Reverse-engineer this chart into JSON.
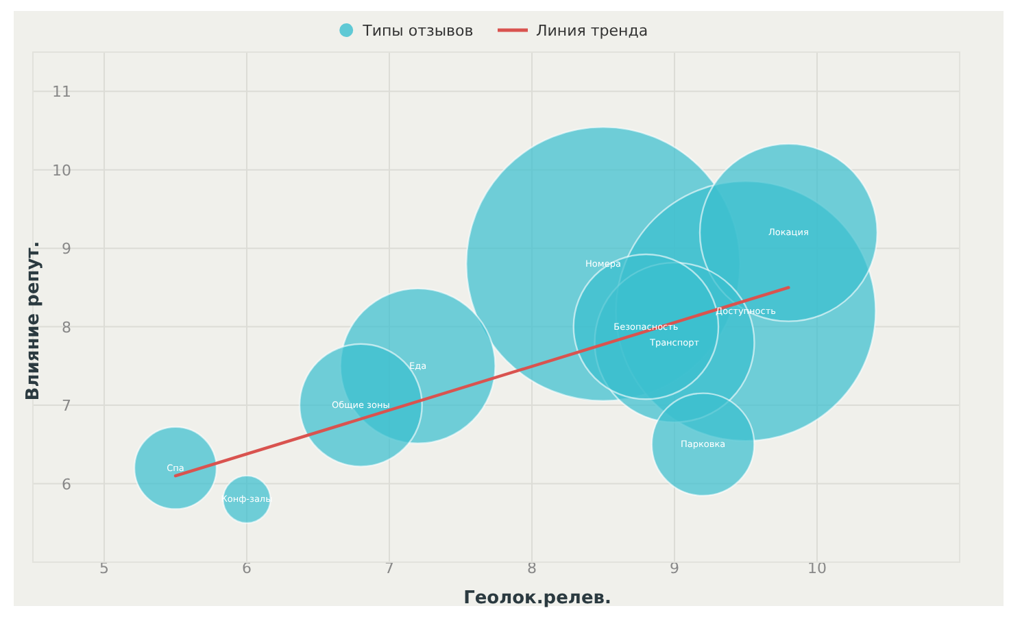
{
  "chart_data": {
    "type": "bubble",
    "xlabel": "Геолок.релев.",
    "ylabel": "Влияние репут.",
    "xlim": [
      4.5,
      11
    ],
    "ylim": [
      5,
      11.5
    ],
    "xticks": [
      5,
      6,
      7,
      8,
      9,
      10
    ],
    "yticks": [
      6,
      7,
      8,
      9,
      10,
      11
    ],
    "grid": true,
    "legend": "top",
    "series": [
      {
        "name": "Типы отзывов",
        "color": "#3bbfcf",
        "x": [
          8.5,
          9.5,
          9.8,
          9.0,
          8.8,
          7.2,
          6.8,
          9.2,
          5.5,
          6.0
        ],
        "values": [
          8.8,
          8.2,
          9.2,
          7.8,
          8.0,
          7.5,
          7.0,
          6.5,
          6.2,
          5.8
        ],
        "sizes": [
          1,
          0.9,
          0.42,
          0.34,
          0.28,
          0.32,
          0.2,
          0.14,
          0.09,
          0.03
        ]
      },
      {
        "name": "Линия тренда",
        "type": "line",
        "color": "#d9534f",
        "x": [
          5.5,
          9.8
        ],
        "values": [
          6.1,
          8.5
        ]
      }
    ],
    "annotations": [
      {
        "text": "Номера",
        "x": 8.5,
        "y": 8.8
      },
      {
        "text": "Доступность",
        "x": 9.5,
        "y": 8.2
      },
      {
        "text": "Локация",
        "x": 9.8,
        "y": 9.2
      },
      {
        "text": "Транспорт",
        "x": 9.0,
        "y": 7.8
      },
      {
        "text": "Безопасность",
        "x": 8.8,
        "y": 8.0
      },
      {
        "text": "Еда",
        "x": 7.2,
        "y": 7.5
      },
      {
        "text": "Общие зоны",
        "x": 6.8,
        "y": 7.0
      },
      {
        "text": "Парковка",
        "x": 9.2,
        "y": 6.5
      },
      {
        "text": "Спа",
        "x": 5.5,
        "y": 6.2
      },
      {
        "text": "Конф-залы",
        "x": 6.0,
        "y": 5.8
      }
    ]
  }
}
